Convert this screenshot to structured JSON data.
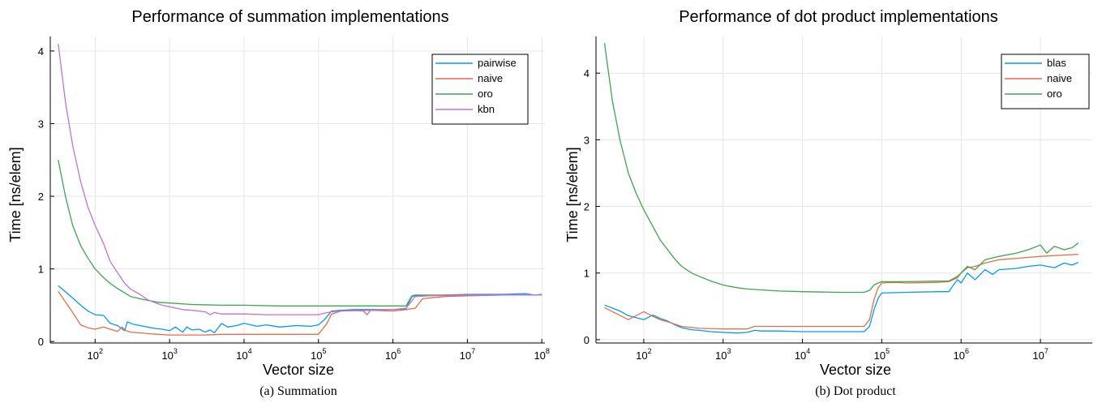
{
  "chart_data": [
    {
      "type": "line",
      "title": "Performance of summation implementations",
      "xlabel": "Vector size",
      "ylabel": "Time [ns/elem]",
      "caption": "(a) Summation",
      "xscale": "log",
      "xlim": [
        25,
        110000000
      ],
      "ylim": [
        -0.02,
        4.2
      ],
      "xticks": [
        {
          "base": "10",
          "exp": "2"
        },
        {
          "base": "10",
          "exp": "3"
        },
        {
          "base": "10",
          "exp": "4"
        },
        {
          "base": "10",
          "exp": "5"
        },
        {
          "base": "10",
          "exp": "6"
        },
        {
          "base": "10",
          "exp": "7"
        },
        {
          "base": "10",
          "exp": "8"
        }
      ],
      "xtick_values": [
        100,
        1000,
        10000,
        100000,
        1000000,
        10000000,
        100000000
      ],
      "yticks": [
        "0",
        "1",
        "2",
        "3",
        "4"
      ],
      "ytick_values": [
        0,
        1,
        2,
        3,
        4
      ],
      "grid": true,
      "legend_position": "top-right",
      "series": [
        {
          "name": "pairwise",
          "color": "#009AFA",
          "x": [
            32,
            50,
            64,
            80,
            100,
            130,
            160,
            200,
            250,
            270,
            320,
            400,
            500,
            650,
            800,
            1000,
            1200,
            1500,
            1700,
            2000,
            2500,
            3000,
            3500,
            4000,
            5000,
            6000,
            8000,
            10000,
            15000,
            20000,
            30000,
            50000,
            80000,
            100000,
            120000,
            150000,
            200000,
            300000,
            500000,
            1000000,
            1500000,
            1800000,
            2000000,
            3000000,
            5000000,
            10000000,
            30000000,
            60000000,
            80000000,
            100000000
          ],
          "y": [
            0.77,
            0.6,
            0.5,
            0.42,
            0.37,
            0.36,
            0.25,
            0.22,
            0.15,
            0.27,
            0.24,
            0.22,
            0.2,
            0.18,
            0.17,
            0.15,
            0.2,
            0.13,
            0.2,
            0.16,
            0.17,
            0.13,
            0.16,
            0.12,
            0.25,
            0.2,
            0.22,
            0.25,
            0.21,
            0.23,
            0.2,
            0.22,
            0.21,
            0.23,
            0.3,
            0.42,
            0.43,
            0.44,
            0.44,
            0.44,
            0.45,
            0.62,
            0.63,
            0.63,
            0.64,
            0.65,
            0.65,
            0.66,
            0.64,
            0.65
          ]
        },
        {
          "name": "naive",
          "color": "#E36F47",
          "x": [
            32,
            50,
            64,
            80,
            100,
            130,
            160,
            200,
            230,
            260,
            300,
            400,
            500,
            700,
            1000,
            2000,
            3000,
            5000,
            10000,
            20000,
            50000,
            100000,
            130000,
            150000,
            200000,
            300000,
            400000,
            450000,
            500000,
            1000000,
            1500000,
            2000000,
            2500000,
            5000000,
            10000000,
            30000000,
            100000000
          ],
          "y": [
            0.69,
            0.4,
            0.23,
            0.19,
            0.17,
            0.2,
            0.17,
            0.14,
            0.2,
            0.15,
            0.13,
            0.12,
            0.11,
            0.1,
            0.09,
            0.09,
            0.09,
            0.1,
            0.1,
            0.1,
            0.1,
            0.1,
            0.25,
            0.38,
            0.42,
            0.43,
            0.42,
            0.37,
            0.43,
            0.42,
            0.44,
            0.46,
            0.59,
            0.62,
            0.63,
            0.64,
            0.64
          ]
        },
        {
          "name": "oro",
          "color": "#3EA44E",
          "x": [
            32,
            40,
            50,
            64,
            80,
            100,
            130,
            160,
            200,
            250,
            300,
            400,
            500,
            700,
            1000,
            2000,
            5000,
            10000,
            30000,
            100000,
            500000,
            1000000,
            1500000,
            1800000,
            2000000,
            3000000,
            10000000,
            100000000
          ],
          "y": [
            2.5,
            2.0,
            1.6,
            1.32,
            1.15,
            1.0,
            0.88,
            0.8,
            0.73,
            0.67,
            0.62,
            0.59,
            0.57,
            0.54,
            0.53,
            0.51,
            0.5,
            0.5,
            0.49,
            0.49,
            0.49,
            0.49,
            0.49,
            0.63,
            0.64,
            0.64,
            0.64,
            0.64
          ]
        },
        {
          "name": "kbn",
          "color": "#C371D2",
          "x": [
            32,
            40,
            50,
            64,
            80,
            100,
            130,
            160,
            200,
            250,
            300,
            400,
            500,
            650,
            800,
            1000,
            1500,
            2000,
            3000,
            3500,
            4000,
            5000,
            7000,
            10000,
            20000,
            50000,
            100000,
            120000,
            150000,
            200000,
            500000,
            1000000,
            1500000,
            2000000,
            3000000,
            10000000,
            100000000
          ],
          "y": [
            4.1,
            3.3,
            2.7,
            2.2,
            1.85,
            1.6,
            1.35,
            1.1,
            0.95,
            0.8,
            0.72,
            0.65,
            0.58,
            0.53,
            0.5,
            0.48,
            0.44,
            0.43,
            0.41,
            0.37,
            0.4,
            0.38,
            0.38,
            0.38,
            0.37,
            0.37,
            0.37,
            0.39,
            0.41,
            0.42,
            0.43,
            0.44,
            0.46,
            0.62,
            0.63,
            0.64,
            0.64
          ]
        }
      ]
    },
    {
      "type": "line",
      "title": "Performance of dot product implementations",
      "xlabel": "Vector size",
      "ylabel": "Time [ns/elem]",
      "caption": "(b) Dot product",
      "xscale": "log",
      "xlim": [
        25,
        45000000
      ],
      "ylim": [
        -0.05,
        4.55
      ],
      "xticks": [
        {
          "base": "10",
          "exp": "2"
        },
        {
          "base": "10",
          "exp": "3"
        },
        {
          "base": "10",
          "exp": "4"
        },
        {
          "base": "10",
          "exp": "5"
        },
        {
          "base": "10",
          "exp": "6"
        },
        {
          "base": "10",
          "exp": "7"
        }
      ],
      "xtick_values": [
        100,
        1000,
        10000,
        100000,
        1000000,
        10000000
      ],
      "yticks": [
        "0",
        "1",
        "2",
        "3",
        "4"
      ],
      "ytick_values": [
        0,
        1,
        2,
        3,
        4
      ],
      "grid": true,
      "legend_position": "top-right",
      "series": [
        {
          "name": "blas",
          "color": "#009AFA",
          "x": [
            32,
            50,
            64,
            80,
            100,
            130,
            160,
            200,
            250,
            300,
            400,
            500,
            700,
            1000,
            1500,
            2000,
            2500,
            3000,
            5000,
            10000,
            30000,
            60000,
            70000,
            80000,
            90000,
            100000,
            200000,
            500000,
            700000,
            800000,
            900000,
            1000000,
            1200000,
            1500000,
            2000000,
            2500000,
            3000000,
            5000000,
            7000000,
            10000000,
            15000000,
            20000000,
            25000000,
            30000000
          ],
          "y": [
            0.52,
            0.43,
            0.36,
            0.33,
            0.3,
            0.37,
            0.32,
            0.28,
            0.22,
            0.18,
            0.15,
            0.14,
            0.12,
            0.11,
            0.1,
            0.11,
            0.14,
            0.13,
            0.13,
            0.12,
            0.12,
            0.12,
            0.2,
            0.45,
            0.62,
            0.7,
            0.71,
            0.72,
            0.72,
            0.82,
            0.9,
            0.85,
            1.0,
            0.9,
            1.05,
            0.98,
            1.05,
            1.07,
            1.1,
            1.12,
            1.08,
            1.15,
            1.12,
            1.16
          ]
        },
        {
          "name": "naive",
          "color": "#E36F47",
          "x": [
            32,
            64,
            100,
            130,
            160,
            200,
            300,
            500,
            1000,
            2000,
            2500,
            3000,
            5000,
            10000,
            30000,
            60000,
            70000,
            80000,
            90000,
            100000,
            150000,
            200000,
            500000,
            700000,
            900000,
            1000000,
            1200000,
            1500000,
            2000000,
            3000000,
            5000000,
            10000000,
            20000000,
            30000000
          ],
          "y": [
            0.48,
            0.3,
            0.42,
            0.35,
            0.3,
            0.27,
            0.2,
            0.17,
            0.16,
            0.16,
            0.2,
            0.2,
            0.2,
            0.2,
            0.2,
            0.2,
            0.3,
            0.6,
            0.78,
            0.85,
            0.86,
            0.85,
            0.86,
            0.87,
            0.93,
            1.0,
            1.08,
            1.1,
            1.15,
            1.2,
            1.22,
            1.25,
            1.27,
            1.28
          ]
        },
        {
          "name": "oro",
          "color": "#3EA44E",
          "x": [
            32,
            40,
            50,
            64,
            80,
            100,
            130,
            160,
            200,
            250,
            300,
            400,
            500,
            700,
            1000,
            1500,
            2000,
            5000,
            10000,
            30000,
            60000,
            70000,
            80000,
            90000,
            100000,
            200000,
            500000,
            700000,
            900000,
            1000000,
            1200000,
            1500000,
            2000000,
            3000000,
            5000000,
            7000000,
            10000000,
            12000000,
            15000000,
            20000000,
            25000000,
            30000000
          ],
          "y": [
            4.45,
            3.6,
            3.0,
            2.5,
            2.2,
            1.95,
            1.7,
            1.5,
            1.35,
            1.2,
            1.1,
            1.0,
            0.95,
            0.88,
            0.82,
            0.78,
            0.76,
            0.73,
            0.72,
            0.71,
            0.71,
            0.74,
            0.82,
            0.85,
            0.87,
            0.87,
            0.88,
            0.88,
            0.95,
            1.0,
            1.1,
            1.05,
            1.2,
            1.25,
            1.3,
            1.35,
            1.42,
            1.3,
            1.4,
            1.35,
            1.38,
            1.45
          ]
        }
      ]
    }
  ]
}
